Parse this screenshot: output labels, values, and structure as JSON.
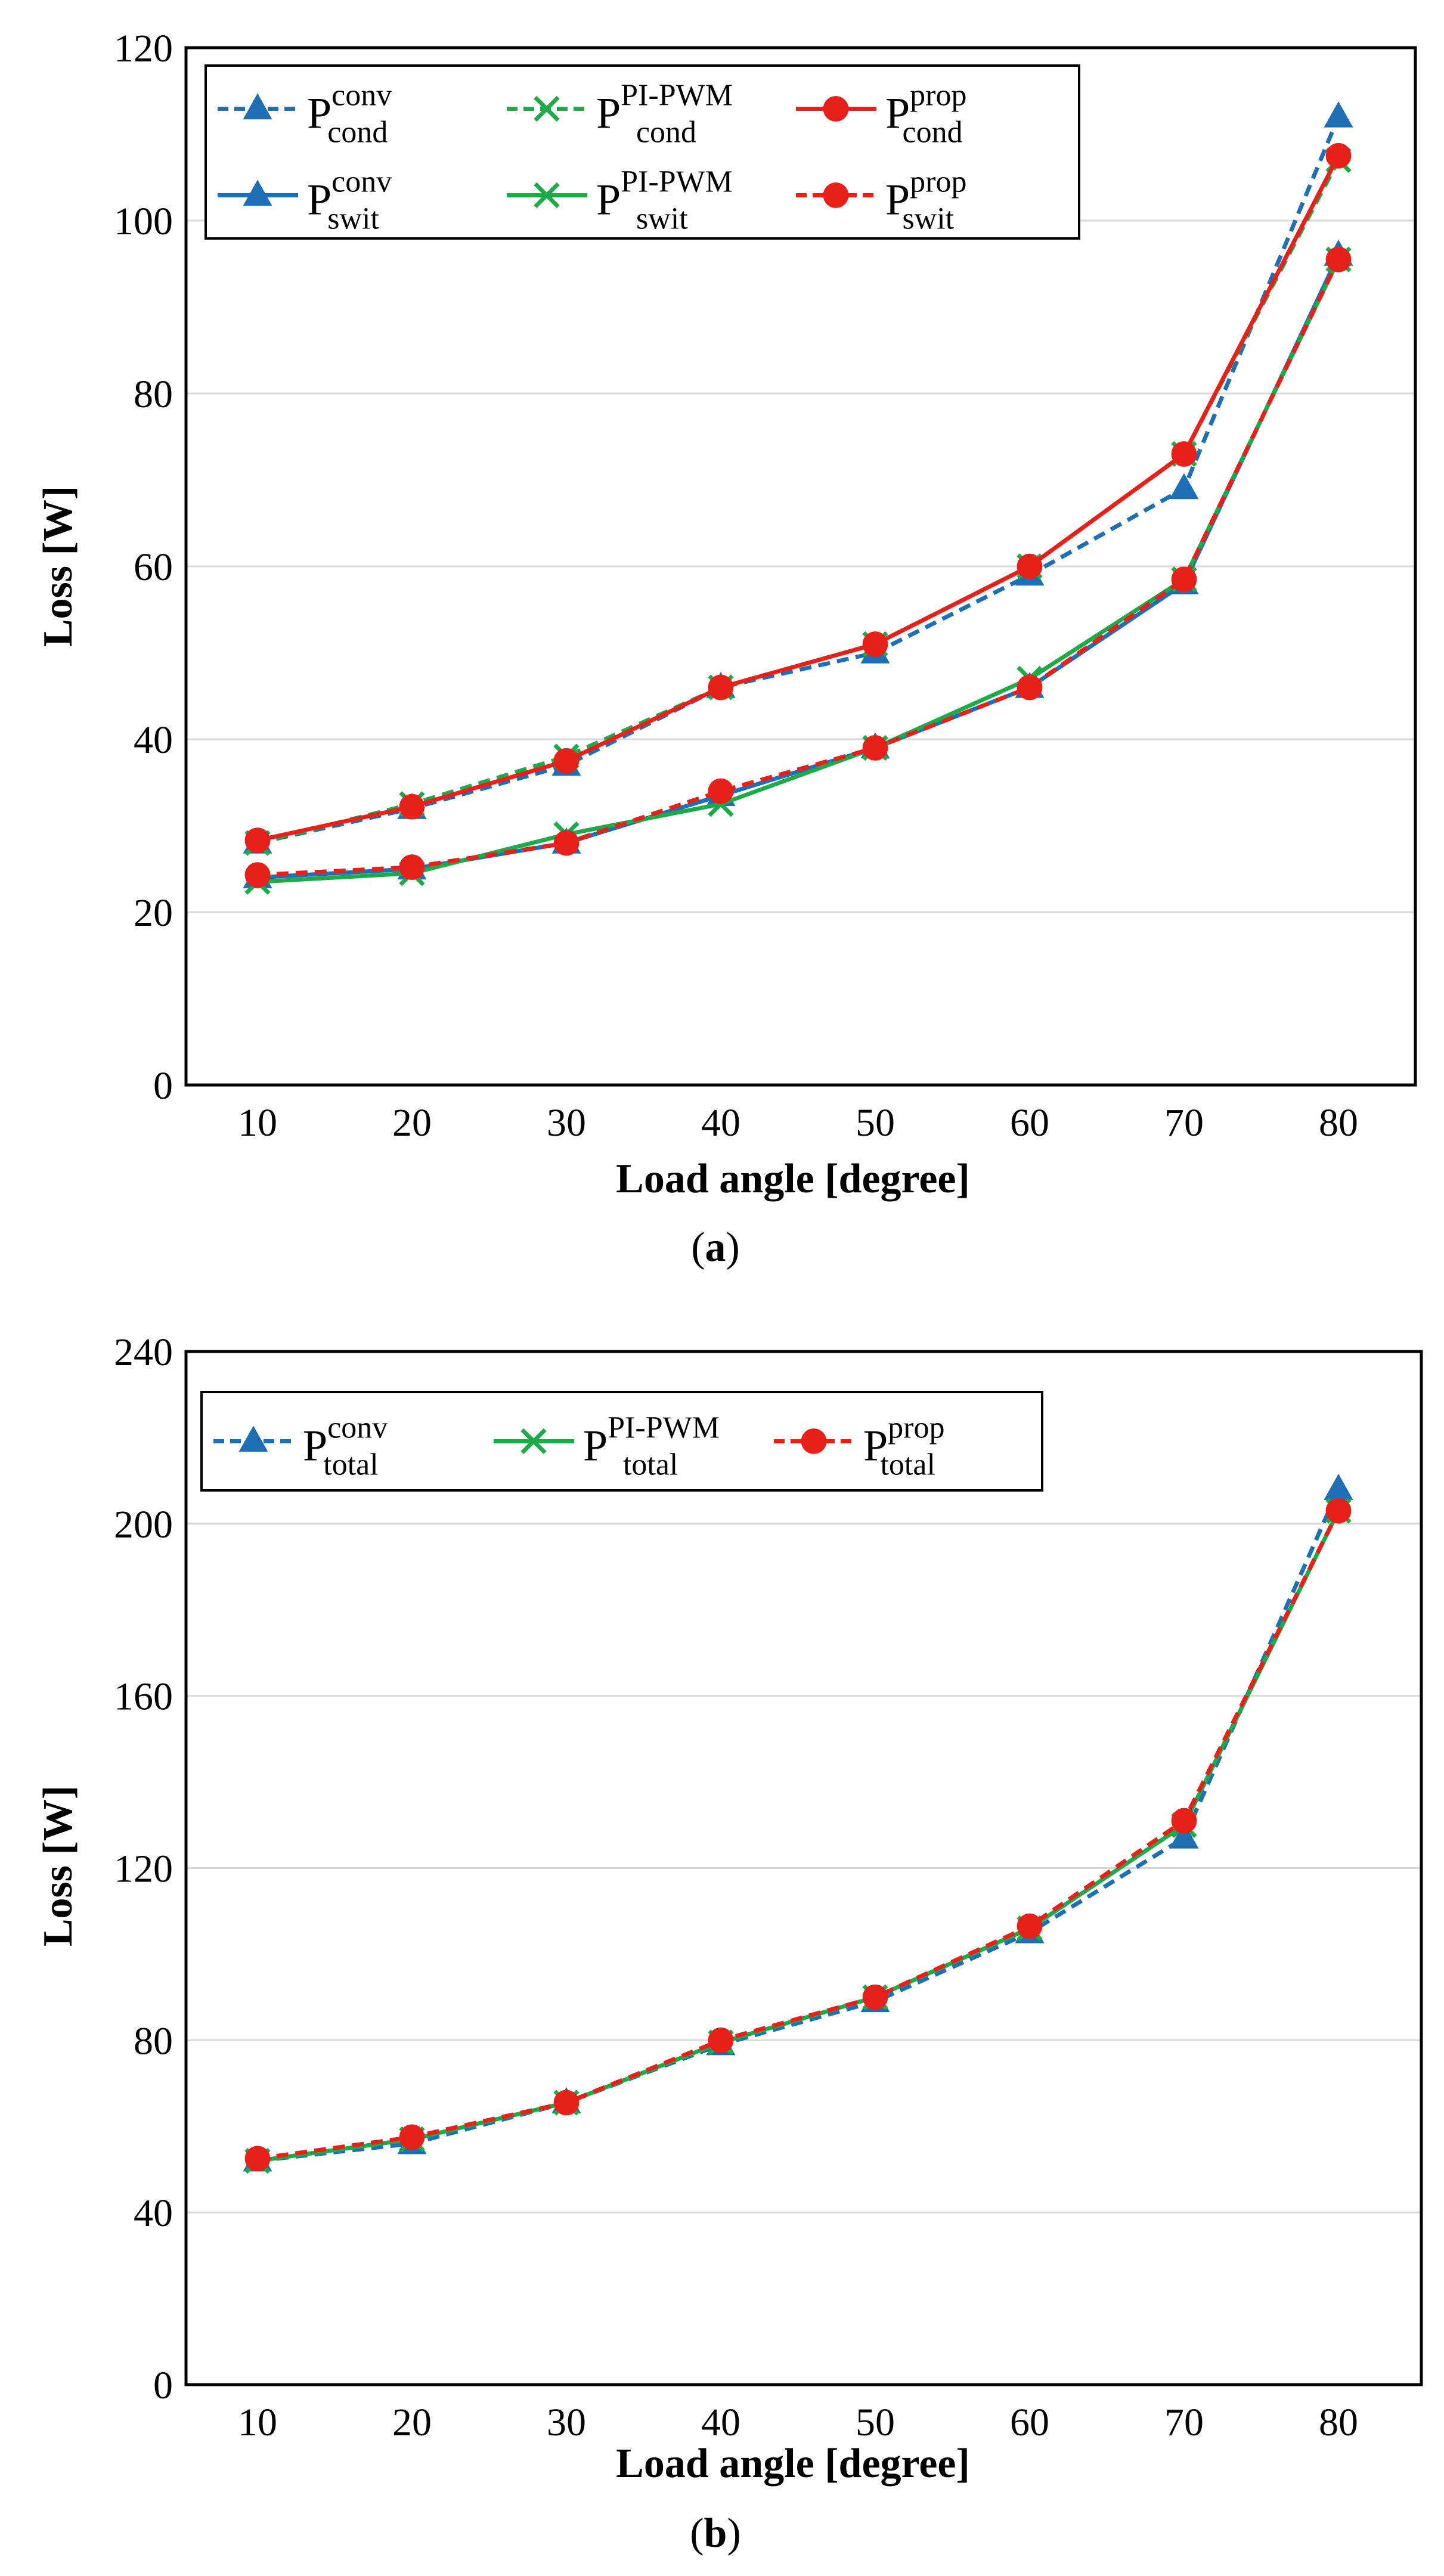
{
  "chart_data": [
    {
      "id": "a",
      "type": "line",
      "caption": {
        "open": "(",
        "label": "a",
        "close": ")"
      },
      "xlabel": "Load angle [degree]",
      "ylabel": "Loss [W]",
      "x": [
        10,
        20,
        30,
        40,
        50,
        60,
        70,
        80
      ],
      "xticks": [
        "10",
        "20",
        "30",
        "40",
        "50",
        "60",
        "70",
        "80"
      ],
      "ylim": [
        0,
        120
      ],
      "yticks": [
        0,
        20,
        40,
        60,
        80,
        100,
        120
      ],
      "grid": true,
      "legend_position": "top-left",
      "series": [
        {
          "name": "P_cond^conv",
          "base": "P",
          "sup": "conv",
          "sub": "cond",
          "color": "#1f6fb5",
          "dash": "dashed",
          "marker": "triangle",
          "values": [
            28,
            32,
            37,
            46,
            50,
            59,
            69,
            112
          ]
        },
        {
          "name": "P_cond^PI-PWM",
          "base": "P",
          "sup": "PI-PWM",
          "sub": "cond",
          "color": "#1faa4a",
          "dash": "dashed",
          "marker": "x",
          "values": [
            28,
            32.5,
            38,
            46,
            51,
            60,
            73,
            107
          ]
        },
        {
          "name": "P_cond^prop",
          "base": "P",
          "sup": "prop",
          "sub": "cond",
          "color": "#e8201a",
          "dash": "solid",
          "marker": "circle",
          "values": [
            28.3,
            32.2,
            37.5,
            46,
            51,
            60,
            73,
            107.5
          ]
        },
        {
          "name": "P_swit^conv",
          "base": "P",
          "sup": "conv",
          "sub": "swit",
          "color": "#1f6fb5",
          "dash": "solid",
          "marker": "triangle",
          "values": [
            24,
            25,
            28,
            33.5,
            39,
            46,
            58,
            96
          ]
        },
        {
          "name": "P_swit^PI-PWM",
          "base": "P",
          "sup": "PI-PWM",
          "sub": "swit",
          "color": "#1faa4a",
          "dash": "solid",
          "marker": "x",
          "values": [
            23.5,
            24.5,
            29,
            32.5,
            39,
            47,
            58.5,
            95.5
          ]
        },
        {
          "name": "P_swit^prop",
          "base": "P",
          "sup": "prop",
          "sub": "swit",
          "color": "#e8201a",
          "dash": "dashed",
          "marker": "circle",
          "values": [
            24.3,
            25.2,
            28,
            34,
            39,
            46,
            58.5,
            95.5
          ]
        }
      ]
    },
    {
      "id": "b",
      "type": "line",
      "caption": {
        "open": "(",
        "label": "b",
        "close": ")"
      },
      "xlabel": "Load angle [degree]",
      "ylabel": "Loss [W]",
      "x": [
        10,
        20,
        30,
        40,
        50,
        60,
        70,
        80
      ],
      "xticks": [
        "10",
        "20",
        "30",
        "40",
        "50",
        "60",
        "70",
        "80"
      ],
      "ylim": [
        0,
        240
      ],
      "yticks": [
        0,
        40,
        80,
        120,
        160,
        200,
        240
      ],
      "grid": true,
      "legend_position": "top-left",
      "series": [
        {
          "name": "P_total^conv",
          "base": "P",
          "sup": "conv",
          "sub": "total",
          "color": "#1f6fb5",
          "dash": "dashed",
          "marker": "triangle",
          "values": [
            52,
            56,
            65.5,
            79,
            89,
            105,
            127,
            208
          ]
        },
        {
          "name": "P_total^PI-PWM",
          "base": "P",
          "sup": "PI-PWM",
          "sub": "total",
          "color": "#1faa4a",
          "dash": "solid",
          "marker": "x",
          "values": [
            52,
            57,
            65.5,
            79.5,
            90,
            106,
            130,
            203
          ]
        },
        {
          "name": "P_total^prop",
          "base": "P",
          "sup": "prop",
          "sub": "total",
          "color": "#e8201a",
          "dash": "dashed",
          "marker": "circle",
          "values": [
            52.5,
            57.5,
            65.5,
            80,
            90,
            106.5,
            131,
            203
          ]
        }
      ]
    }
  ]
}
